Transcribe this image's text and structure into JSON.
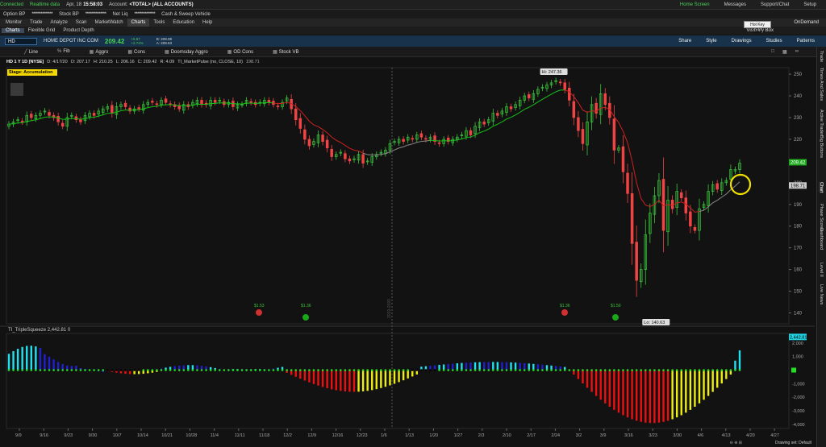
{
  "status": {
    "connected": "Connected",
    "realtime": "Realtime data",
    "date": "Apr, 18",
    "time": "15:58:03",
    "account_label": "Account:",
    "account": "<TOTAL> (ALL ACCOUNTS)",
    "home": "Home Screen",
    "messages": "Messages",
    "support": "Support/Chat",
    "setup": "Setup"
  },
  "acct": {
    "option_bp": "Option BP",
    "stock_bp": "Stock BP",
    "net_liq": "Net Liq",
    "cash": "Cash & Sweep Vehicle",
    "masked": "**************"
  },
  "main_tabs": [
    "Monitor",
    "Trade",
    "Analyze",
    "Scan",
    "MarketWatch",
    "Charts",
    "Tools",
    "Education",
    "Help"
  ],
  "on_demand": "OnDemand",
  "hotkey_tooltip": "Hot Key Setup",
  "sub_tabs": [
    "Charts",
    "Flexible Grid",
    "Product Depth"
  ],
  "visibility_box": "Visibility Box",
  "symbol": {
    "ticker": "HD",
    "name": "HOME DEPOT INC COM",
    "price": "209.42",
    "chg": "+5.57",
    "chg_pct": "+2.74%",
    "bid": "B: 209.08",
    "ask": "A: 209.53"
  },
  "symbar_right": [
    "Share",
    "Style",
    "Drawings",
    "Studies",
    "Patterns"
  ],
  "drawbar": [
    "Line",
    "Fib",
    "Aggro",
    "Cons",
    "Doomsday Aggro",
    "OD Cons",
    "Stock VB"
  ],
  "info": {
    "title": "HD 1 Y 1D [NYSE]",
    "d": "D: 4/17/20",
    "o": "O: 207.17",
    "h": "H: 210.25",
    "l": "L: 206.16",
    "c": "C: 209.42",
    "r": "R: 4.09",
    "study": "TI_MarketPulse (no, CLOSE, 10)",
    "study_val": "198.71"
  },
  "stage": "Stage: Accumulation",
  "lower": {
    "label": "TI_TripleSqueeze",
    "value": "2,442.81",
    "extra": "0"
  },
  "right_tabs": [
    "Trade",
    "Times And Sales",
    "Active Trader",
    "Big Buttons",
    "Chart",
    "Phase Scores",
    "Dashboard",
    "Level II",
    "Live News"
  ],
  "drawing_set": "Drawing set: Default",
  "chart_data": {
    "type": "candlestick",
    "price_axis": {
      "ylim": [
        135,
        253
      ],
      "ticks": [
        140,
        150,
        160,
        170,
        180,
        190,
        200,
        210,
        220,
        230,
        240,
        250
      ]
    },
    "lower_axis": {
      "ylim": [
        -4300,
        2700
      ],
      "ticks": [
        "2,000",
        "1,000",
        "0",
        "-1,000",
        "-2,000",
        "-3,000",
        "-4,000"
      ]
    },
    "x_ticks": [
      "9/9",
      "9/16",
      "9/23",
      "9/30",
      "10/7",
      "10/14",
      "10/21",
      "10/28",
      "11/4",
      "11/11",
      "11/18",
      "12/2",
      "12/9",
      "12/16",
      "12/23",
      "1/6",
      "1/13",
      "1/20",
      "1/27",
      "2/3",
      "2/10",
      "2/17",
      "2/24",
      "3/2",
      "3/9",
      "3/16",
      "3/23",
      "3/30",
      "4/6",
      "4/13",
      "4/20",
      "4/27"
    ],
    "hi_label": "Hi: 247.36",
    "lo_label": "Lo: 140.63",
    "last_price": "209.42",
    "pulse_price": "198.71",
    "lower_last": "2,442.81",
    "dividends": [
      "$1.53",
      "$1.36",
      "$1.36",
      "$1.50"
    ],
    "separator_label": "2019-2020",
    "closes": [
      227,
      228,
      229,
      228,
      231,
      230,
      231,
      232,
      233,
      231,
      230,
      228,
      226,
      230,
      231,
      229,
      228,
      231,
      232,
      231,
      233,
      234,
      235,
      232,
      235,
      236,
      235,
      233,
      234,
      234,
      236,
      237,
      237,
      236,
      238,
      237,
      236,
      235,
      234,
      236,
      235,
      237,
      238,
      236,
      236,
      238,
      237,
      238,
      236,
      237,
      235,
      236,
      236,
      238,
      237,
      236,
      237,
      238,
      237,
      236,
      235,
      237,
      239,
      234,
      229,
      225,
      220,
      217,
      219,
      222,
      219,
      216,
      212,
      213,
      214,
      211,
      210,
      211,
      213,
      209,
      210,
      212,
      213,
      214,
      215,
      218,
      219,
      220,
      219,
      221,
      220,
      222,
      221,
      220,
      221,
      219,
      218,
      220,
      219,
      220,
      221,
      222,
      224,
      222,
      226,
      228,
      227,
      229,
      232,
      231,
      233,
      235,
      234,
      236,
      238,
      240,
      239,
      241,
      243,
      244,
      245,
      246,
      247,
      246,
      243,
      238,
      230,
      224,
      218,
      228,
      236,
      232,
      241,
      236,
      230,
      215,
      216,
      205,
      195,
      172,
      155,
      160,
      176,
      186,
      194,
      201,
      178,
      192,
      188,
      196,
      193,
      186,
      180,
      178,
      188,
      190,
      196,
      199,
      197,
      200,
      201,
      206,
      206,
      209
    ]
  },
  "colors": {
    "up": "#3bc43b",
    "down": "#ee4444",
    "pulse_up": "#18c018",
    "pulse_down": "#d02020",
    "pulse_neutral": "#8a8a8a",
    "hist_cyan": "#22e0f0",
    "hist_blue": "#2020d0",
    "hist_red": "#ee1010",
    "hist_yellow": "#eeee10",
    "dot_green": "#20e020",
    "dot_black": "#000000"
  }
}
